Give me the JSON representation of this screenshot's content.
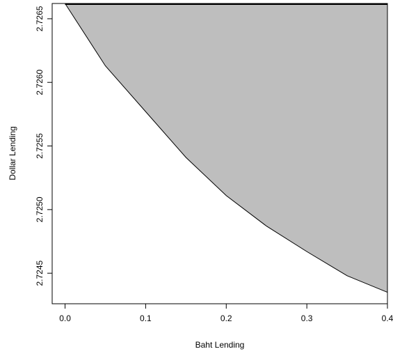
{
  "chart_data": {
    "type": "area",
    "x_label": "Baht Lending",
    "y_label": "Dollar Lending",
    "x": [
      0,
      0.05,
      0.1,
      0.15,
      0.2,
      0.25,
      0.3,
      0.35,
      0.4
    ],
    "values": [
      2.72662,
      2.72613,
      2.72577,
      2.72541,
      2.72511,
      2.72487,
      2.72467,
      2.72448,
      2.72435
    ],
    "color": "#bebebe",
    "xlim": [
      -0.016,
      0.4
    ],
    "ylim": [
      2.72426,
      2.72662
    ],
    "xticks": [
      {
        "value": 0,
        "label": "0.0"
      },
      0.1,
      0.2,
      0.3,
      0.4
    ],
    "yticks": [
      2.7245,
      {
        "value": 2.725,
        "label": "2.7250"
      },
      2.7255,
      {
        "value": 2.726,
        "label": "2.7260"
      },
      2.7265
    ]
  }
}
